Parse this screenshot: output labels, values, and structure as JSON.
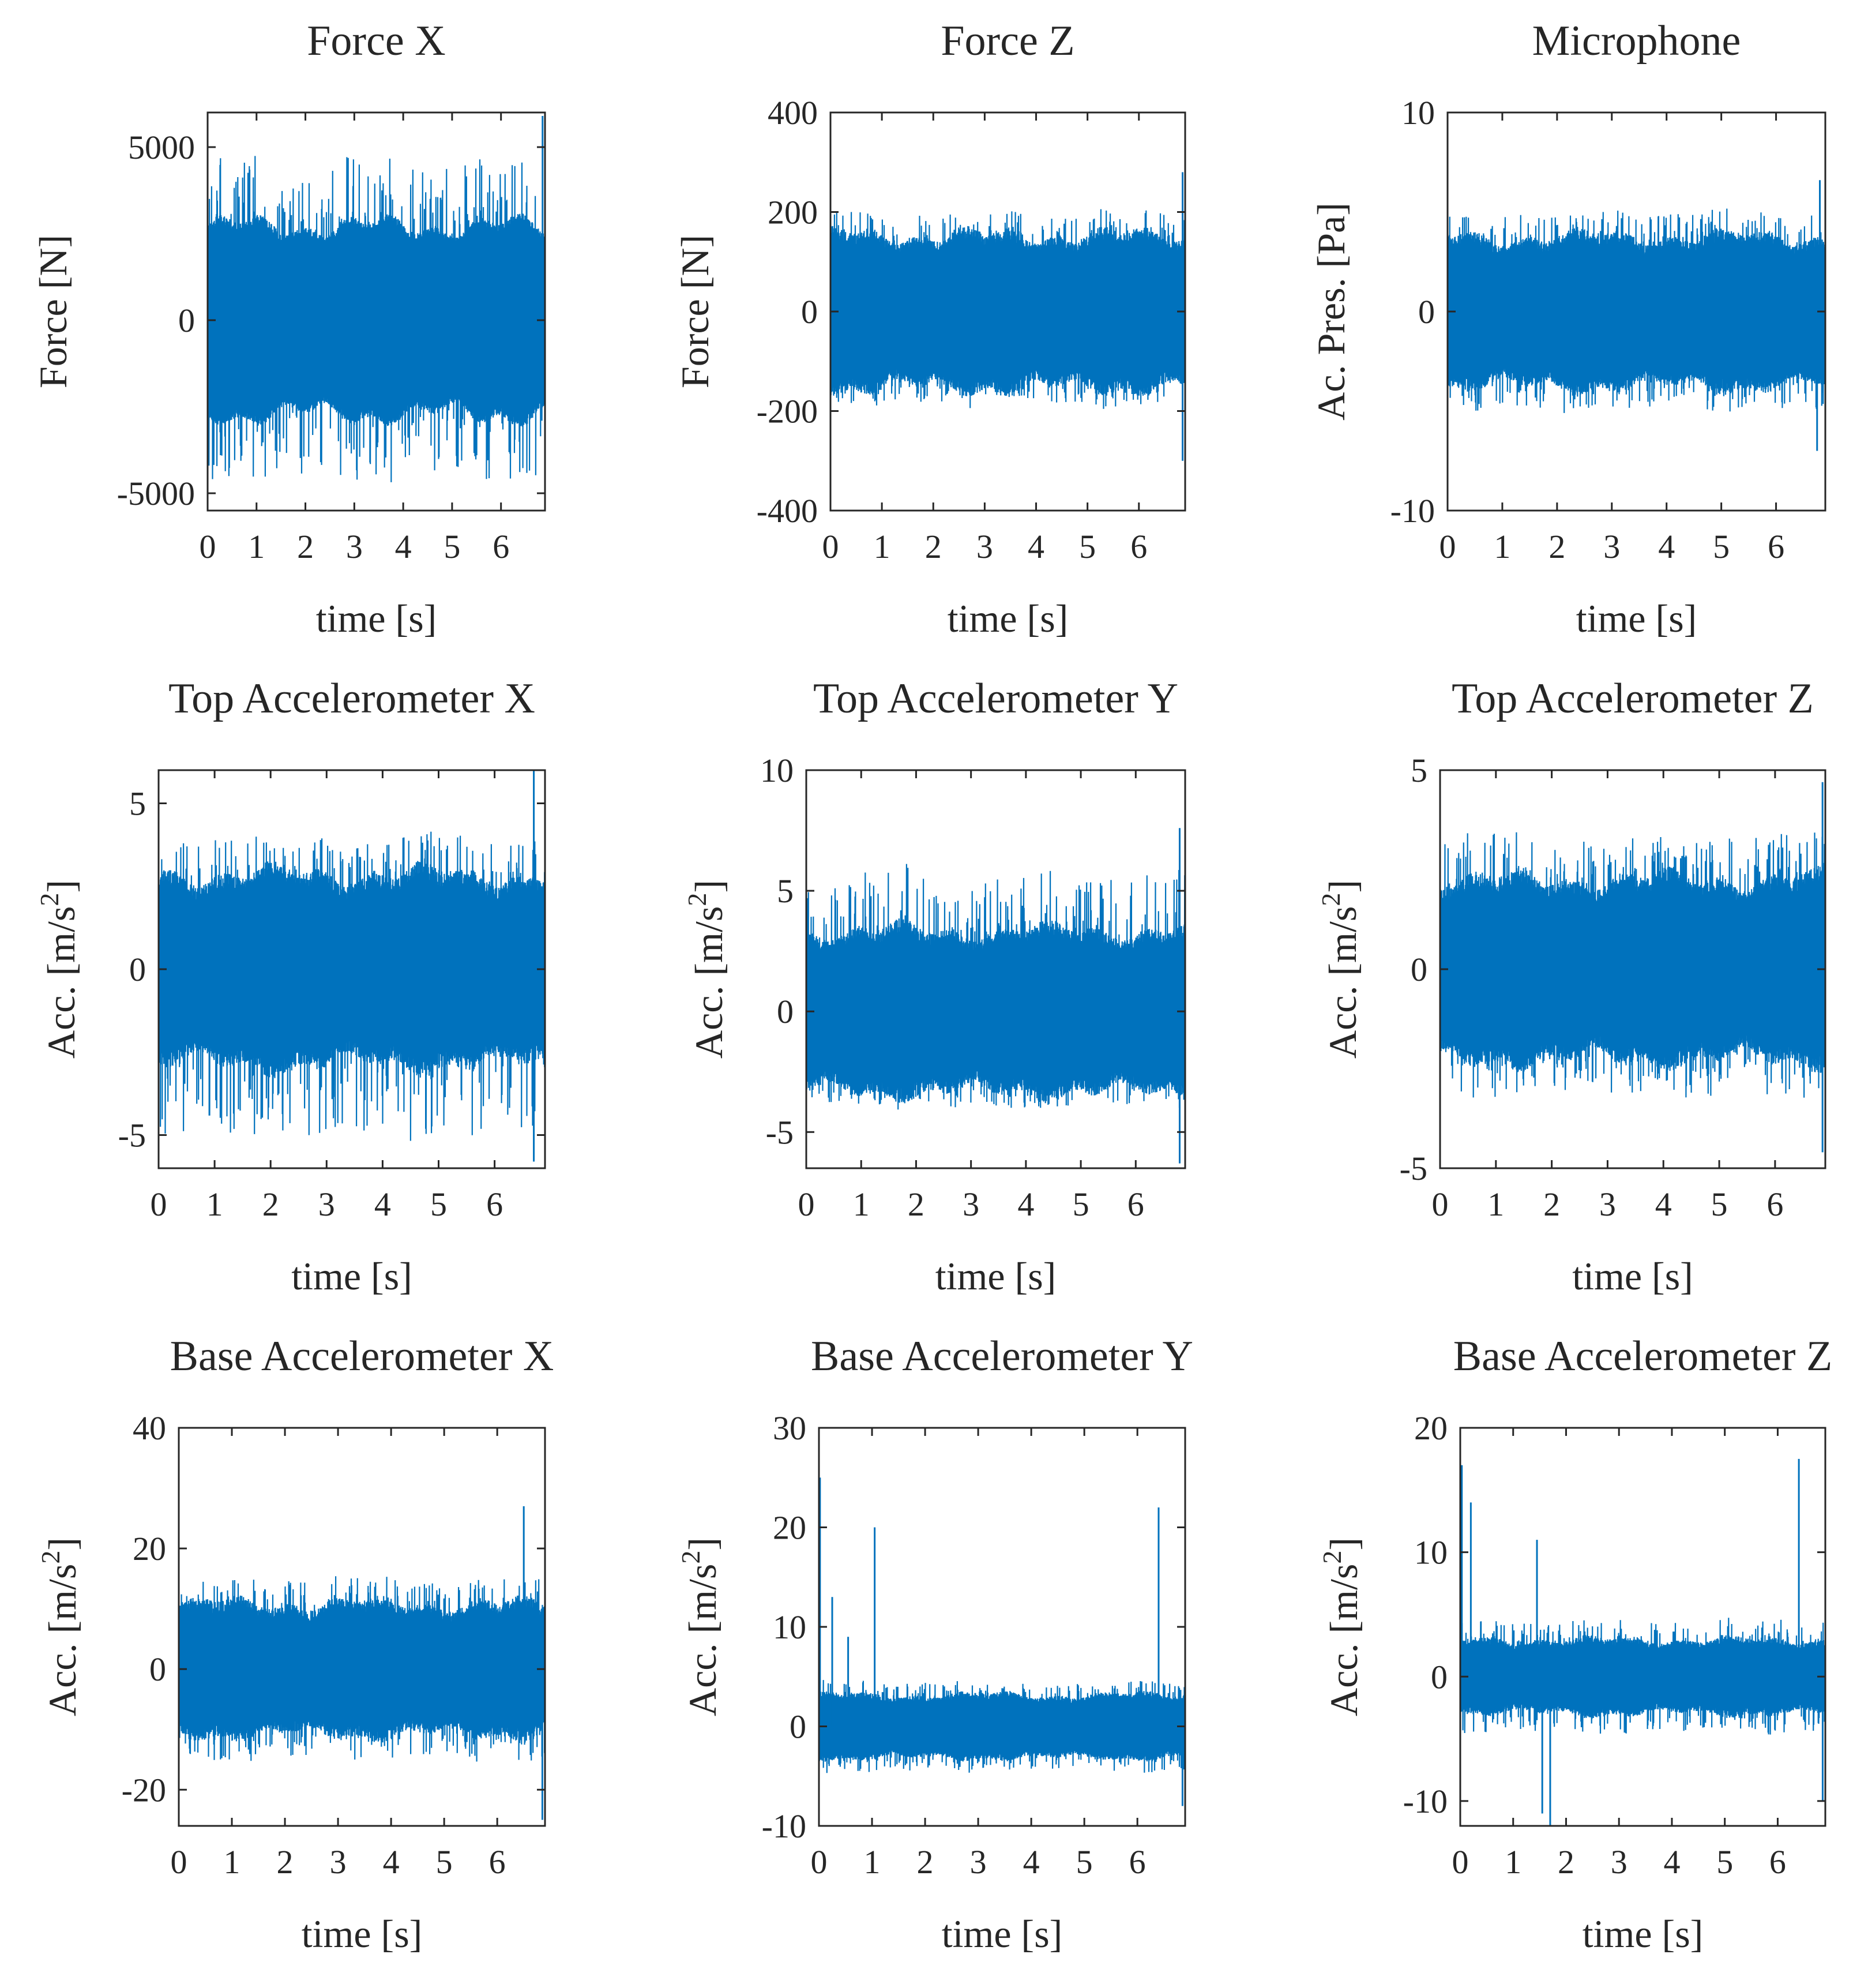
{
  "figure": {
    "signal_color": "#0072BD",
    "axes_color": "#262626",
    "background": "#ffffff"
  },
  "chart_data": [
    {
      "type": "line",
      "title": "Force X",
      "xlabel": "time [s]",
      "ylabel": "Force [N]",
      "xlim": [
        0,
        6.9
      ],
      "ylim": [
        -5500,
        6000
      ],
      "xticks": [
        0,
        1,
        2,
        3,
        4,
        5,
        6
      ],
      "xtick_labels": [
        "0",
        "1",
        "2",
        "3",
        "4",
        "5",
        "6"
      ],
      "yticks": [
        -5000,
        0,
        5000
      ],
      "ytick_labels": [
        "-5000",
        "0",
        "5000"
      ],
      "envelope": {
        "core": 2500,
        "peak_pos": 4600,
        "peak_neg": 4500,
        "noise": 250,
        "spikes": [
          [
            6.85,
            5900
          ],
          [
            6.9,
            -5500
          ]
        ]
      },
      "series": [
        {
          "name": "Force X",
          "color": "#0072BD"
        }
      ]
    },
    {
      "type": "line",
      "title": "Force Z",
      "xlabel": "time [s]",
      "ylabel": "Force [N]",
      "xlim": [
        0,
        6.9
      ],
      "ylim": [
        -400,
        400
      ],
      "xticks": [
        0,
        1,
        2,
        3,
        4,
        5,
        6
      ],
      "xtick_labels": [
        "0",
        "1",
        "2",
        "3",
        "4",
        "5",
        "6"
      ],
      "yticks": [
        -400,
        -200,
        0,
        200,
        400
      ],
      "ytick_labels": [
        "-400",
        "-200",
        "0",
        "200",
        "400"
      ],
      "envelope": {
        "core": 130,
        "peak_pos": 200,
        "peak_neg": 190,
        "noise": 25,
        "spikes": [
          [
            6.85,
            280
          ],
          [
            6.85,
            -300
          ]
        ]
      },
      "series": [
        {
          "name": "Force Z",
          "color": "#0072BD"
        }
      ]
    },
    {
      "type": "line",
      "title": "Microphone",
      "xlabel": "time [s]",
      "ylabel": "Ac. Pres. [Pa]",
      "xlim": [
        0,
        6.9
      ],
      "ylim": [
        -10,
        10
      ],
      "xticks": [
        0,
        1,
        2,
        3,
        4,
        5,
        6
      ],
      "xtick_labels": [
        "0",
        "1",
        "2",
        "3",
        "4",
        "5",
        "6"
      ],
      "yticks": [
        -10,
        0,
        10
      ],
      "ytick_labels": [
        "-10",
        "0",
        "10"
      ],
      "envelope": {
        "core": 3.2,
        "peak_pos": 5.0,
        "peak_neg": 5.0,
        "noise": 0.6,
        "spikes": [
          [
            6.8,
            6.6
          ],
          [
            6.75,
            -7.0
          ]
        ]
      },
      "series": [
        {
          "name": "Microphone",
          "color": "#0072BD"
        }
      ]
    },
    {
      "type": "line",
      "title": "Top Accelerometer X",
      "xlabel": "time [s]",
      "ylabel": "Acc. [m/s2]",
      "xlim": [
        0,
        6.9
      ],
      "ylim": [
        -6,
        6
      ],
      "xticks": [
        0,
        1,
        2,
        3,
        4,
        5,
        6
      ],
      "xtick_labels": [
        "0",
        "1",
        "2",
        "3",
        "4",
        "5",
        "6"
      ],
      "yticks": [
        -5,
        0,
        5
      ],
      "ytick_labels": [
        "-5",
        "0",
        "5"
      ],
      "envelope": {
        "core": 2.4,
        "peak_pos": 4.0,
        "peak_neg": 5.0,
        "noise": 0.5,
        "spikes": [
          [
            6.7,
            6.0
          ],
          [
            6.7,
            -5.8
          ]
        ]
      },
      "series": [
        {
          "name": "Top Accelerometer X",
          "color": "#0072BD"
        }
      ]
    },
    {
      "type": "line",
      "title": "Top Accelerometer Y",
      "xlabel": "time [s]",
      "ylabel": "Acc. [m/s2]",
      "xlim": [
        0,
        6.9
      ],
      "ylim": [
        -6.5,
        10
      ],
      "xticks": [
        0,
        1,
        2,
        3,
        4,
        5,
        6
      ],
      "xtick_labels": [
        "0",
        "1",
        "2",
        "3",
        "4",
        "5",
        "6"
      ],
      "yticks": [
        -5,
        0,
        5,
        10
      ],
      "ytick_labels": [
        "-5",
        "0",
        "5",
        "10"
      ],
      "envelope": {
        "core": 2.8,
        "peak_pos": 5.8,
        "peak_neg": 4.0,
        "noise": 0.6,
        "spikes": [
          [
            6.8,
            7.6
          ],
          [
            6.8,
            -6.3
          ]
        ]
      },
      "series": [
        {
          "name": "Top Accelerometer Y",
          "color": "#0072BD"
        }
      ]
    },
    {
      "type": "line",
      "title": "Top Accelerometer Z",
      "xlabel": "time [s]",
      "ylabel": "Acc. [m/s2]",
      "xlim": [
        0,
        6.9
      ],
      "ylim": [
        -5,
        5
      ],
      "xticks": [
        0,
        1,
        2,
        3,
        4,
        5,
        6
      ],
      "xtick_labels": [
        "0",
        "1",
        "2",
        "3",
        "4",
        "5",
        "6"
      ],
      "yticks": [
        -5,
        0,
        5
      ],
      "ytick_labels": [
        "-5",
        "0",
        "5"
      ],
      "envelope": {
        "core": 1.9,
        "peak_pos": 3.4,
        "peak_neg": 3.2,
        "noise": 0.4,
        "spikes": [
          [
            6.85,
            4.7
          ],
          [
            6.85,
            -4.6
          ]
        ]
      },
      "series": [
        {
          "name": "Top Accelerometer Z",
          "color": "#0072BD"
        }
      ]
    },
    {
      "type": "line",
      "title": "Base Accelerometer X",
      "xlabel": "time [s]",
      "ylabel": "Acc. [m/s2]",
      "xlim": [
        0,
        6.9
      ],
      "ylim": [
        -26,
        40
      ],
      "xticks": [
        0,
        1,
        2,
        3,
        4,
        5,
        6
      ],
      "xtick_labels": [
        "0",
        "1",
        "2",
        "3",
        "4",
        "5",
        "6"
      ],
      "yticks": [
        -20,
        0,
        20,
        40
      ],
      "ytick_labels": [
        "-20",
        "0",
        "20",
        "40"
      ],
      "envelope": {
        "core": 9,
        "peak_pos": 15,
        "peak_neg": 15,
        "noise": 2,
        "spikes": [
          [
            6.5,
            27
          ],
          [
            6.85,
            -25
          ]
        ]
      },
      "series": [
        {
          "name": "Base Accelerometer X",
          "color": "#0072BD"
        }
      ]
    },
    {
      "type": "line",
      "title": "Base Accelerometer Y",
      "xlabel": "time [s]",
      "ylabel": "Acc. [m/s2]",
      "xlim": [
        0,
        6.9
      ],
      "ylim": [
        -10,
        30
      ],
      "xticks": [
        0,
        1,
        2,
        3,
        4,
        5,
        6
      ],
      "xtick_labels": [
        "0",
        "1",
        "2",
        "3",
        "4",
        "5",
        "6"
      ],
      "yticks": [
        -10,
        0,
        10,
        20,
        30
      ],
      "ytick_labels": [
        "-10",
        "0",
        "10",
        "20",
        "30"
      ],
      "envelope": {
        "core": 2.6,
        "peak_pos": 4.5,
        "peak_neg": 4.5,
        "noise": 0.6,
        "spikes": [
          [
            0.02,
            25
          ],
          [
            0.25,
            13
          ],
          [
            0.55,
            9
          ],
          [
            1.05,
            20
          ],
          [
            6.4,
            22
          ],
          [
            6.85,
            -8
          ]
        ]
      },
      "series": [
        {
          "name": "Base Accelerometer Y",
          "color": "#0072BD"
        }
      ]
    },
    {
      "type": "line",
      "title": "Base Accelerometer Z",
      "xlabel": "time [s]",
      "ylabel": "Acc. [m/s2]",
      "xlim": [
        0,
        6.9
      ],
      "ylim": [
        -12,
        20
      ],
      "xticks": [
        0,
        1,
        2,
        3,
        4,
        5,
        6
      ],
      "xtick_labels": [
        "0",
        "1",
        "2",
        "3",
        "4",
        "5",
        "6"
      ],
      "yticks": [
        -10,
        0,
        10,
        20
      ],
      "ytick_labels": [
        "-10",
        "0",
        "10",
        "20"
      ],
      "envelope": {
        "core": 2.4,
        "peak_pos": 4.5,
        "peak_neg": 4.5,
        "noise": 0.6,
        "spikes": [
          [
            0.03,
            17
          ],
          [
            0.2,
            14
          ],
          [
            1.45,
            11
          ],
          [
            1.55,
            -11
          ],
          [
            1.7,
            -12
          ],
          [
            6.4,
            17.5
          ],
          [
            6.85,
            -10
          ]
        ]
      },
      "series": [
        {
          "name": "Base Accelerometer Z",
          "color": "#0072BD"
        }
      ]
    }
  ]
}
